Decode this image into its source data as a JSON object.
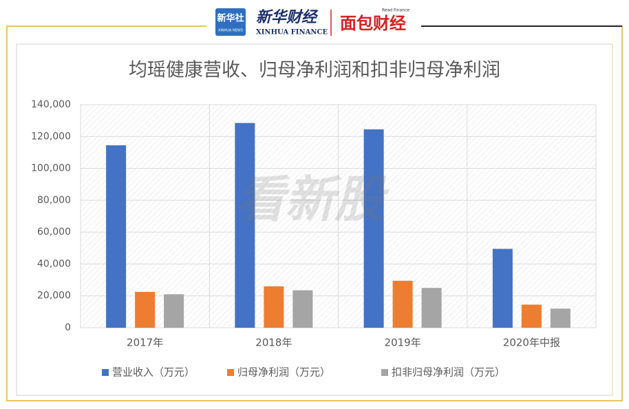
{
  "header": {
    "logo1_title": "新华社",
    "logo1_sub": "XINHUA NEWS",
    "logo2_title": "新华财经",
    "logo2_sub": "XINHUA FINANCE",
    "logo3_sub": "Read Finance",
    "logo3_title": "面包财经"
  },
  "watermark": "看新股",
  "chart_data": {
    "type": "bar",
    "title": "均瑶健康营收、归母净利润和扣非归母净利润",
    "categories": [
      "2017年",
      "2018年",
      "2019年",
      "2020年中报"
    ],
    "series": [
      {
        "name": "营业收入（万元）",
        "color": "#4472c4",
        "values": [
          114500,
          128500,
          124500,
          49500
        ]
      },
      {
        "name": "归母净利润（万元）",
        "color": "#ed7d31",
        "values": [
          22500,
          26000,
          29500,
          14500
        ]
      },
      {
        "name": "扣非归母净利润（万元）",
        "color": "#a5a5a5",
        "values": [
          21000,
          23500,
          25000,
          12000
        ]
      }
    ],
    "ylim": [
      0,
      140000
    ],
    "yticks": [
      0,
      {
        "value": 20000,
        "label": "20,000"
      },
      {
        "value": 40000,
        "label": "40,000"
      },
      {
        "value": 60000,
        "label": "60,000"
      },
      {
        "value": 80000,
        "label": "80,000"
      },
      {
        "value": 100000,
        "label": "100,000"
      },
      {
        "value": 120000,
        "label": "120,000"
      },
      {
        "value": 140000,
        "label": "140,000"
      }
    ],
    "grid": true,
    "legend": "bottom"
  }
}
